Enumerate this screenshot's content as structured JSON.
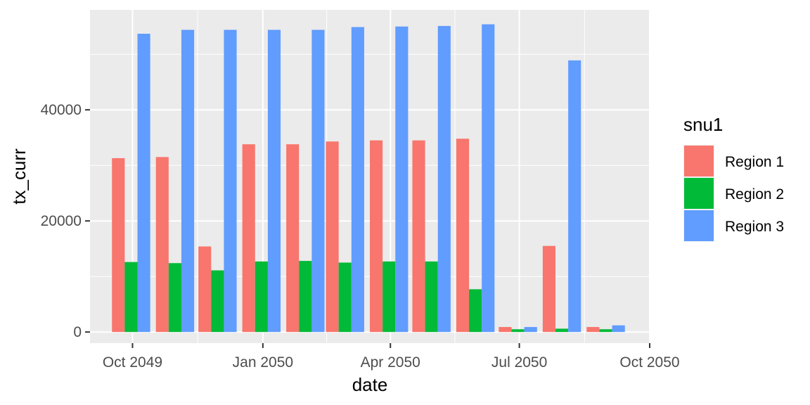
{
  "chart_data": {
    "type": "bar",
    "xlabel": "date",
    "ylabel": "tx_curr",
    "x_scale": "date",
    "categories": [
      "2049-09-30",
      "2049-10-31",
      "2049-11-30",
      "2049-12-31",
      "2050-01-31",
      "2050-02-28",
      "2050-03-31",
      "2050-04-30",
      "2050-05-31",
      "2050-06-30",
      "2050-07-31",
      "2050-08-31"
    ],
    "series": [
      {
        "name": "Region 1",
        "color": "#F8766D",
        "values": [
          31300,
          31500,
          15400,
          33800,
          33800,
          34300,
          34500,
          34500,
          34800,
          900,
          15500,
          900
        ]
      },
      {
        "name": "Region 2",
        "color": "#00BA38",
        "values": [
          12600,
          12400,
          11100,
          12700,
          12800,
          12500,
          12700,
          12700,
          7700,
          500,
          600,
          500
        ]
      },
      {
        "name": "Region 3",
        "color": "#619CFF",
        "values": [
          53700,
          54400,
          54400,
          54400,
          54400,
          54900,
          55000,
          55100,
          55400,
          900,
          48900,
          1200
        ]
      }
    ],
    "x_ticks": [
      {
        "date": "2049-10-01",
        "label": "Oct 2049"
      },
      {
        "date": "2050-01-01",
        "label": "Jan 2050"
      },
      {
        "date": "2050-04-01",
        "label": "Apr 2050"
      },
      {
        "date": "2050-07-01",
        "label": "Jul 2050"
      },
      {
        "date": "2050-10-01",
        "label": "Oct 2050"
      }
    ],
    "y_ticks": [
      0,
      20000,
      40000
    ],
    "ylim": [
      -2000,
      58000
    ],
    "xlim": [
      "2049-09-01",
      "2050-09-30"
    ],
    "grid": true,
    "legend": {
      "title": "snu1",
      "position": "right"
    },
    "panel_background": "#EBEBEB"
  }
}
